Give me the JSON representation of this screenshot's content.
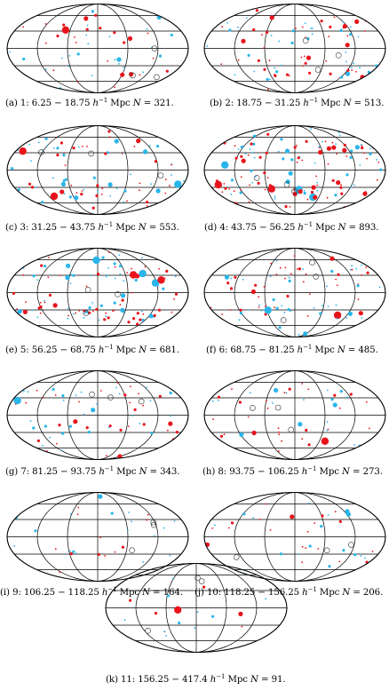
{
  "colors": {
    "red": "#e8141c",
    "blue": "#29b5ea",
    "grid": "#000000"
  },
  "unit_h": "h",
  "unit_exp": "−1",
  "unit_mpc": "Mpc",
  "n_label": "N =",
  "panels": [
    {
      "letter": "(a)",
      "idx": "1:",
      "range": "6.25 − 18.75",
      "n": "321."
    },
    {
      "letter": "(b)",
      "idx": "2:",
      "range": "18.75 − 31.25",
      "n": "513."
    },
    {
      "letter": "(c)",
      "idx": "3:",
      "range": "31.25 − 43.75",
      "n": "553."
    },
    {
      "letter": "(d)",
      "idx": "4:",
      "range": "43.75 − 56.25",
      "n": "893."
    },
    {
      "letter": "(e)",
      "idx": "5:",
      "range": "56.25 − 68.75",
      "n": "681."
    },
    {
      "letter": "(f)",
      "idx": "6:",
      "range": "68.75 − 81.25",
      "n": "485."
    },
    {
      "letter": "(g)",
      "idx": "7:",
      "range": "81.25 − 93.75",
      "n": "343."
    },
    {
      "letter": "(h)",
      "idx": "8:",
      "range": "93.75 − 106.25",
      "n": "273."
    },
    {
      "letter": "(i)",
      "idx": "9:",
      "range": "106.25 − 118.25",
      "n": "164."
    },
    {
      "letter": "(j)",
      "idx": "10:",
      "range": "118.25 − 156.25",
      "n": "206."
    },
    {
      "letter": "(k)",
      "idx": "11:",
      "range": "156.25 − 417.4",
      "n": "91."
    }
  ]
}
